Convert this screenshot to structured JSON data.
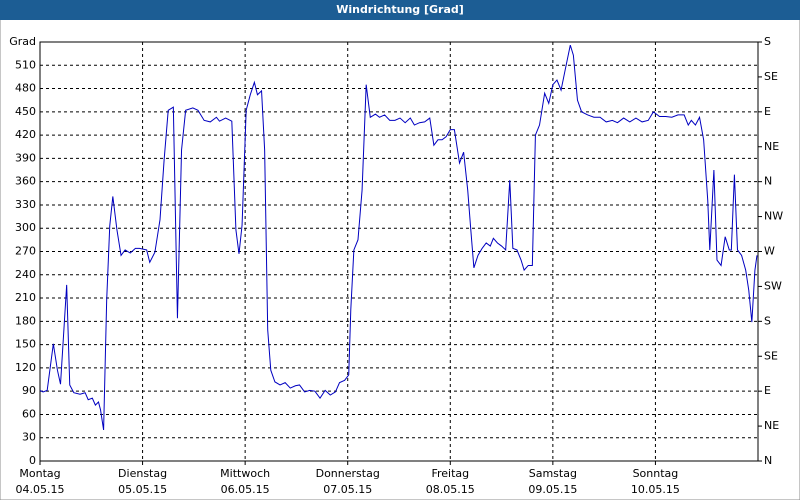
{
  "chart_data": {
    "type": "line",
    "title": "Windrichtung [Grad]",
    "x": [
      0,
      0.03,
      0.07,
      0.13,
      0.17,
      0.2,
      0.26,
      0.29,
      0.33,
      0.39,
      0.44,
      0.47,
      0.51,
      0.54,
      0.57,
      0.59,
      0.62,
      0.65,
      0.68,
      0.71,
      0.75,
      0.79,
      0.83,
      0.88,
      0.93,
      0.97,
      1.04,
      1.07,
      1.12,
      1.17,
      1.21,
      1.25,
      1.3,
      1.34,
      1.38,
      1.42,
      1.49,
      1.54,
      1.6,
      1.66,
      1.72,
      1.75,
      1.81,
      1.87,
      1.91,
      1.94,
      1.97,
      2.01,
      2.05,
      2.09,
      2.12,
      2.16,
      2.19,
      2.22,
      2.25,
      2.29,
      2.34,
      2.39,
      2.44,
      2.49,
      2.53,
      2.58,
      2.63,
      2.68,
      2.73,
      2.78,
      2.83,
      2.88,
      2.92,
      2.97,
      3.01,
      3.03,
      3.06,
      3.1,
      3.14,
      3.18,
      3.22,
      3.27,
      3.31,
      3.36,
      3.41,
      3.46,
      3.51,
      3.56,
      3.61,
      3.65,
      3.7,
      3.75,
      3.8,
      3.84,
      3.88,
      3.92,
      3.96,
      4.0,
      4.04,
      4.09,
      4.13,
      4.17,
      4.2,
      4.23,
      4.27,
      4.31,
      4.35,
      4.39,
      4.42,
      4.46,
      4.5,
      4.54,
      4.58,
      4.61,
      4.65,
      4.69,
      4.72,
      4.76,
      4.8,
      4.83,
      4.87,
      4.92,
      4.96,
      5.0,
      5.04,
      5.08,
      5.12,
      5.17,
      5.2,
      5.24,
      5.28,
      5.34,
      5.4,
      5.46,
      5.52,
      5.58,
      5.63,
      5.69,
      5.75,
      5.81,
      5.87,
      5.93,
      5.98,
      6.04,
      6.1,
      6.16,
      6.22,
      6.28,
      6.32,
      6.35,
      6.39,
      6.43,
      6.47,
      6.51,
      6.53,
      6.57,
      6.6,
      6.64,
      6.68,
      6.72,
      6.74,
      6.77,
      6.8,
      6.84,
      6.88,
      6.91,
      6.94,
      6.97,
      6.99
    ],
    "series": [
      {
        "color": "#0000c0",
        "values": [
          91,
          89,
          91,
          151,
          117,
          99,
          227,
          98,
          88,
          86,
          88,
          79,
          81,
          72,
          76,
          66,
          40,
          207,
          303,
          341,
          298,
          265,
          272,
          268,
          274,
          274,
          272,
          256,
          269,
          311,
          388,
          452,
          456,
          184,
          401,
          452,
          455,
          452,
          439,
          437,
          443,
          438,
          442,
          438,
          298,
          267,
          304,
          452,
          472,
          488,
          472,
          477,
          401,
          169,
          117,
          102,
          98,
          101,
          94,
          97,
          98,
          89,
          91,
          90,
          81,
          91,
          85,
          89,
          101,
          104,
          111,
          195,
          272,
          285,
          349,
          485,
          443,
          447,
          443,
          446,
          439,
          439,
          442,
          436,
          442,
          433,
          436,
          437,
          442,
          407,
          414,
          414,
          418,
          427,
          427,
          384,
          398,
          349,
          298,
          249,
          265,
          274,
          281,
          277,
          287,
          281,
          277,
          272,
          362,
          274,
          272,
          259,
          246,
          252,
          252,
          420,
          433,
          474,
          461,
          485,
          491,
          478,
          504,
          536,
          523,
          465,
          450,
          446,
          443,
          443,
          437,
          439,
          436,
          442,
          437,
          442,
          437,
          439,
          450,
          444,
          444,
          443,
          446,
          446,
          433,
          439,
          433,
          443,
          414,
          336,
          272,
          375,
          259,
          252,
          289,
          272,
          272,
          369,
          272,
          265,
          246,
          220,
          179,
          246,
          265
        ]
      }
    ],
    "xlim": [
      0,
      7
    ],
    "xticks": [
      {
        "value": 0,
        "label": "Montag",
        "date": "04.05.15"
      },
      {
        "value": 1,
        "label": "Dienstag",
        "date": "05.05.15"
      },
      {
        "value": 2,
        "label": "Mittwoch",
        "date": "06.05.15"
      },
      {
        "value": 3,
        "label": "Donnerstag",
        "date": "07.05.15"
      },
      {
        "value": 4,
        "label": "Freitag",
        "date": "08.05.15"
      },
      {
        "value": 5,
        "label": "Samstag",
        "date": "09.05.15"
      },
      {
        "value": 6,
        "label": "Sonntag",
        "date": "10.05.15"
      }
    ],
    "ylim": [
      0,
      540
    ],
    "yticks": [
      0,
      30,
      60,
      90,
      120,
      150,
      180,
      210,
      240,
      270,
      300,
      330,
      360,
      390,
      420,
      450,
      480,
      510,
      {
        "value": 540,
        "label": "Grad"
      }
    ],
    "y2lim": [
      0,
      540
    ],
    "y2ticks": [
      {
        "value": 0,
        "label": "N"
      },
      {
        "value": 45,
        "label": "NE"
      },
      {
        "value": 90,
        "label": "E"
      },
      {
        "value": 135,
        "label": "SE"
      },
      {
        "value": 180,
        "label": "S"
      },
      {
        "value": 225,
        "label": "SW"
      },
      {
        "value": 270,
        "label": "W"
      },
      {
        "value": 315,
        "label": "NW"
      },
      {
        "value": 360,
        "label": "N"
      },
      {
        "value": 405,
        "label": "NE"
      },
      {
        "value": 450,
        "label": "E"
      },
      {
        "value": 495,
        "label": "SE"
      },
      {
        "value": 540,
        "label": "S"
      }
    ],
    "grid": true
  }
}
